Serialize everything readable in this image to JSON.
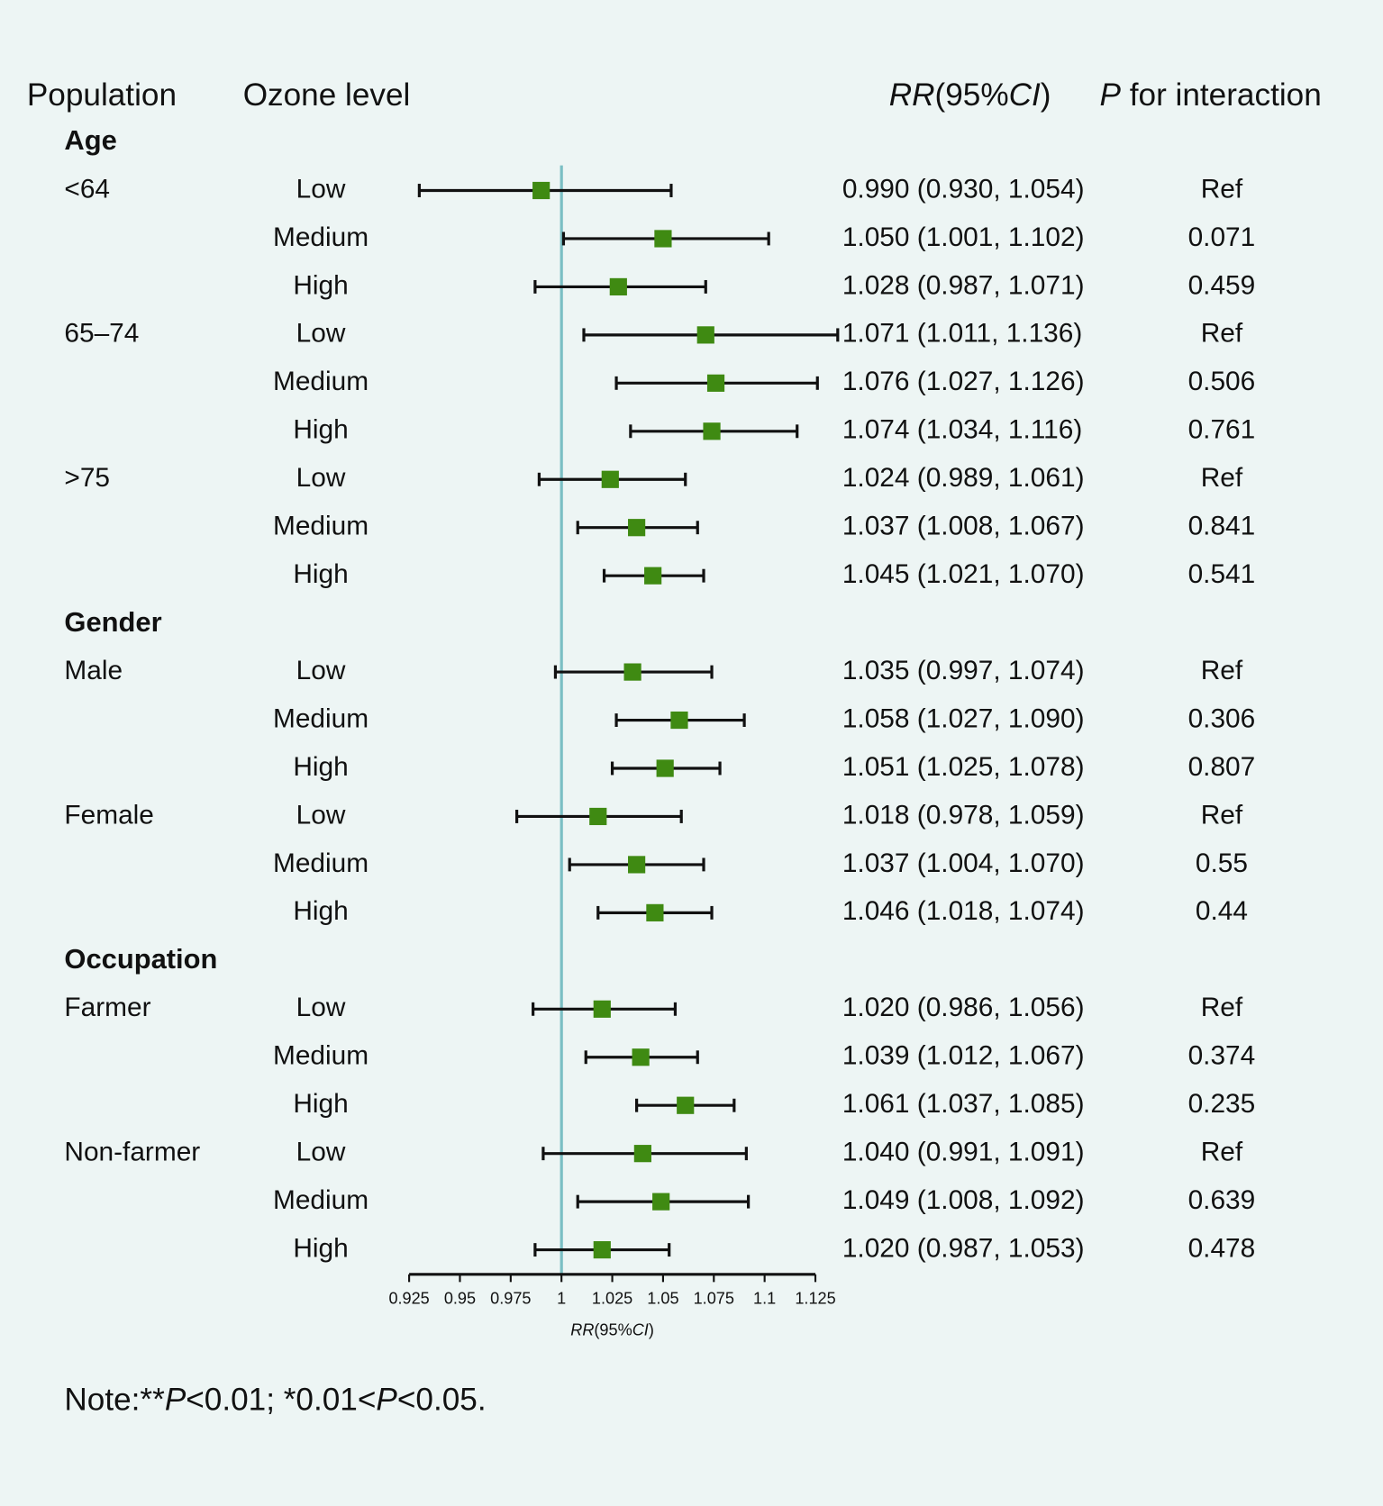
{
  "chart_data": {
    "type": "forest",
    "headers": {
      "population": "Population",
      "ozone": "Ozone level",
      "rr": [
        "RR",
        "(95%",
        "CI",
        ")"
      ],
      "p": [
        "P",
        " for interaction"
      ]
    },
    "groups": [
      {
        "name": "Age",
        "subgroups": [
          {
            "name": "<64",
            "rows": [
              {
                "level": "Low",
                "rr": 0.99,
                "lower": 0.93,
                "upper": 1.054,
                "value_label": "0.990 (0.930, 1.054)",
                "p": "Ref"
              },
              {
                "level": "Medium",
                "rr": 1.05,
                "lower": 1.001,
                "upper": 1.102,
                "value_label": "1.050 (1.001, 1.102)",
                "p": 0.071
              },
              {
                "level": "High",
                "rr": 1.028,
                "lower": 0.987,
                "upper": 1.071,
                "value_label": "1.028 (0.987, 1.071)",
                "p": 0.459
              }
            ]
          },
          {
            "name": "65–74",
            "rows": [
              {
                "level": "Low",
                "rr": 1.071,
                "lower": 1.011,
                "upper": 1.136,
                "value_label": "1.071 (1.011, 1.136)",
                "p": "Ref"
              },
              {
                "level": "Medium",
                "rr": 1.076,
                "lower": 1.027,
                "upper": 1.126,
                "value_label": "1.076 (1.027, 1.126)",
                "p": 0.506
              },
              {
                "level": "High",
                "rr": 1.074,
                "lower": 1.034,
                "upper": 1.116,
                "value_label": "1.074 (1.034, 1.116)",
                "p": 0.761
              }
            ]
          },
          {
            "name": ">75",
            "rows": [
              {
                "level": "Low",
                "rr": 1.024,
                "lower": 0.989,
                "upper": 1.061,
                "value_label": "1.024 (0.989, 1.061)",
                "p": "Ref"
              },
              {
                "level": "Medium",
                "rr": 1.037,
                "lower": 1.008,
                "upper": 1.067,
                "value_label": "1.037 (1.008, 1.067)",
                "p": 0.841
              },
              {
                "level": "High",
                "rr": 1.045,
                "lower": 1.021,
                "upper": 1.07,
                "value_label": "1.045 (1.021, 1.070)",
                "p": 0.541
              }
            ]
          }
        ]
      },
      {
        "name": "Gender",
        "subgroups": [
          {
            "name": "Male",
            "rows": [
              {
                "level": "Low",
                "rr": 1.035,
                "lower": 0.997,
                "upper": 1.074,
                "value_label": "1.035 (0.997, 1.074)",
                "p": "Ref"
              },
              {
                "level": "Medium",
                "rr": 1.058,
                "lower": 1.027,
                "upper": 1.09,
                "value_label": "1.058 (1.027, 1.090)",
                "p": 0.306
              },
              {
                "level": "High",
                "rr": 1.051,
                "lower": 1.025,
                "upper": 1.078,
                "value_label": "1.051 (1.025, 1.078)",
                "p": 0.807
              }
            ]
          },
          {
            "name": "Female",
            "rows": [
              {
                "level": "Low",
                "rr": 1.018,
                "lower": 0.978,
                "upper": 1.059,
                "value_label": "1.018 (0.978, 1.059)",
                "p": "Ref"
              },
              {
                "level": "Medium",
                "rr": 1.037,
                "lower": 1.004,
                "upper": 1.07,
                "value_label": "1.037 (1.004, 1.070)",
                "p": 0.55
              },
              {
                "level": "High",
                "rr": 1.046,
                "lower": 1.018,
                "upper": 1.074,
                "value_label": "1.046 (1.018, 1.074)",
                "p": 0.44
              }
            ]
          }
        ]
      },
      {
        "name": "Occupation",
        "subgroups": [
          {
            "name": "Farmer",
            "rows": [
              {
                "level": "Low",
                "rr": 1.02,
                "lower": 0.986,
                "upper": 1.056,
                "value_label": "1.020 (0.986, 1.056)",
                "p": "Ref"
              },
              {
                "level": "Medium",
                "rr": 1.039,
                "lower": 1.012,
                "upper": 1.067,
                "value_label": "1.039 (1.012, 1.067)",
                "p": 0.374
              },
              {
                "level": "High",
                "rr": 1.061,
                "lower": 1.037,
                "upper": 1.085,
                "value_label": "1.061 (1.037, 1.085)",
                "p": 0.235
              }
            ]
          },
          {
            "name": "Non-farmer",
            "rows": [
              {
                "level": "Low",
                "rr": 1.04,
                "lower": 0.991,
                "upper": 1.091,
                "value_label": "1.040 (0.991, 1.091)",
                "p": "Ref"
              },
              {
                "level": "Medium",
                "rr": 1.049,
                "lower": 1.008,
                "upper": 1.092,
                "value_label": "1.049 (1.008, 1.092)",
                "p": 0.639
              },
              {
                "level": "High",
                "rr": 1.02,
                "lower": 0.987,
                "upper": 1.053,
                "value_label": "1.020 (0.987, 1.053)",
                "p": 0.478
              }
            ]
          }
        ]
      }
    ],
    "xlim": [
      0.925,
      1.125
    ],
    "xticks": [
      0.925,
      0.95,
      0.975,
      1,
      1.025,
      1.05,
      1.075,
      1.1,
      1.125
    ],
    "xlabel": [
      "RR",
      "(95%",
      "CI",
      ")"
    ],
    "reference": 1,
    "marker_color": "#3f8a12",
    "reference_color": "#7bbfc4",
    "note": [
      "Note:**",
      "P",
      "<0.01; *0.01<",
      "P",
      "<0.05."
    ]
  }
}
